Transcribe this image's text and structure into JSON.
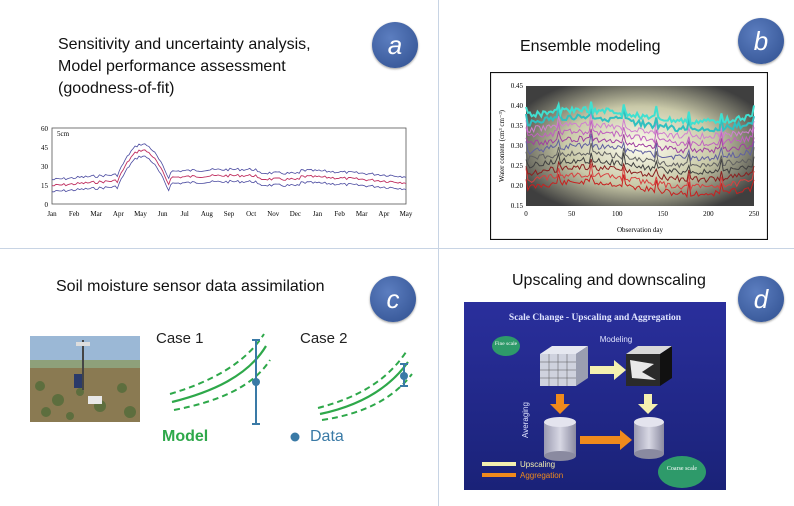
{
  "panel_a": {
    "badge": "a",
    "title_lines": [
      "Sensitivity and uncertainty analysis,",
      "Model performance assessment",
      "(goodness-of-fit)"
    ],
    "plot_label": "5cm",
    "y_ticks": [
      "60",
      "45",
      "30",
      "15",
      "0"
    ],
    "x_ticks": [
      "Jan",
      "Feb",
      "Mar",
      "Apr",
      "May",
      "Jun",
      "Jul",
      "Aug",
      "Sep",
      "Oct",
      "Nov",
      "Dec",
      "Jan",
      "Feb",
      "Mar",
      "Apr",
      "May"
    ]
  },
  "panel_b": {
    "badge": "b",
    "title": "Ensemble modeling",
    "ylabel": "Water content (cm³ cm⁻³)",
    "xlabel": "Observation day",
    "y_ticks": [
      "0.45",
      "0.40",
      "0.35",
      "0.30",
      "0.25",
      "0.20",
      "0.15"
    ],
    "x_ticks": [
      "0",
      "50",
      "100",
      "150",
      "200",
      "250"
    ]
  },
  "panel_c": {
    "badge": "c",
    "title": "Soil moisture sensor data assimilation",
    "case1": "Case 1",
    "case2": "Case 2",
    "legend_model": "Model",
    "legend_data": "Data"
  },
  "panel_d": {
    "badge": "d",
    "title": "Upscaling and downscaling",
    "slide_title": "Scale Change  - Upscaling and Aggregation",
    "fine_scale": "Fine scale",
    "modeling": "Modeling",
    "averaging": "Averaging",
    "coarse_scale": "Coarse scale",
    "legend_upscaling": "Upscaling",
    "legend_aggregation": "Aggregation",
    "colors": {
      "slide_bg": "#1e2a8c",
      "upscaling": "#f4f0b0",
      "aggregation": "#f08a1c",
      "scale_bubble": "#2e9a6a"
    }
  },
  "colors": {
    "badge": "#3b5998",
    "model_green": "#2ea84a",
    "data_blue": "#3a7aa6"
  }
}
